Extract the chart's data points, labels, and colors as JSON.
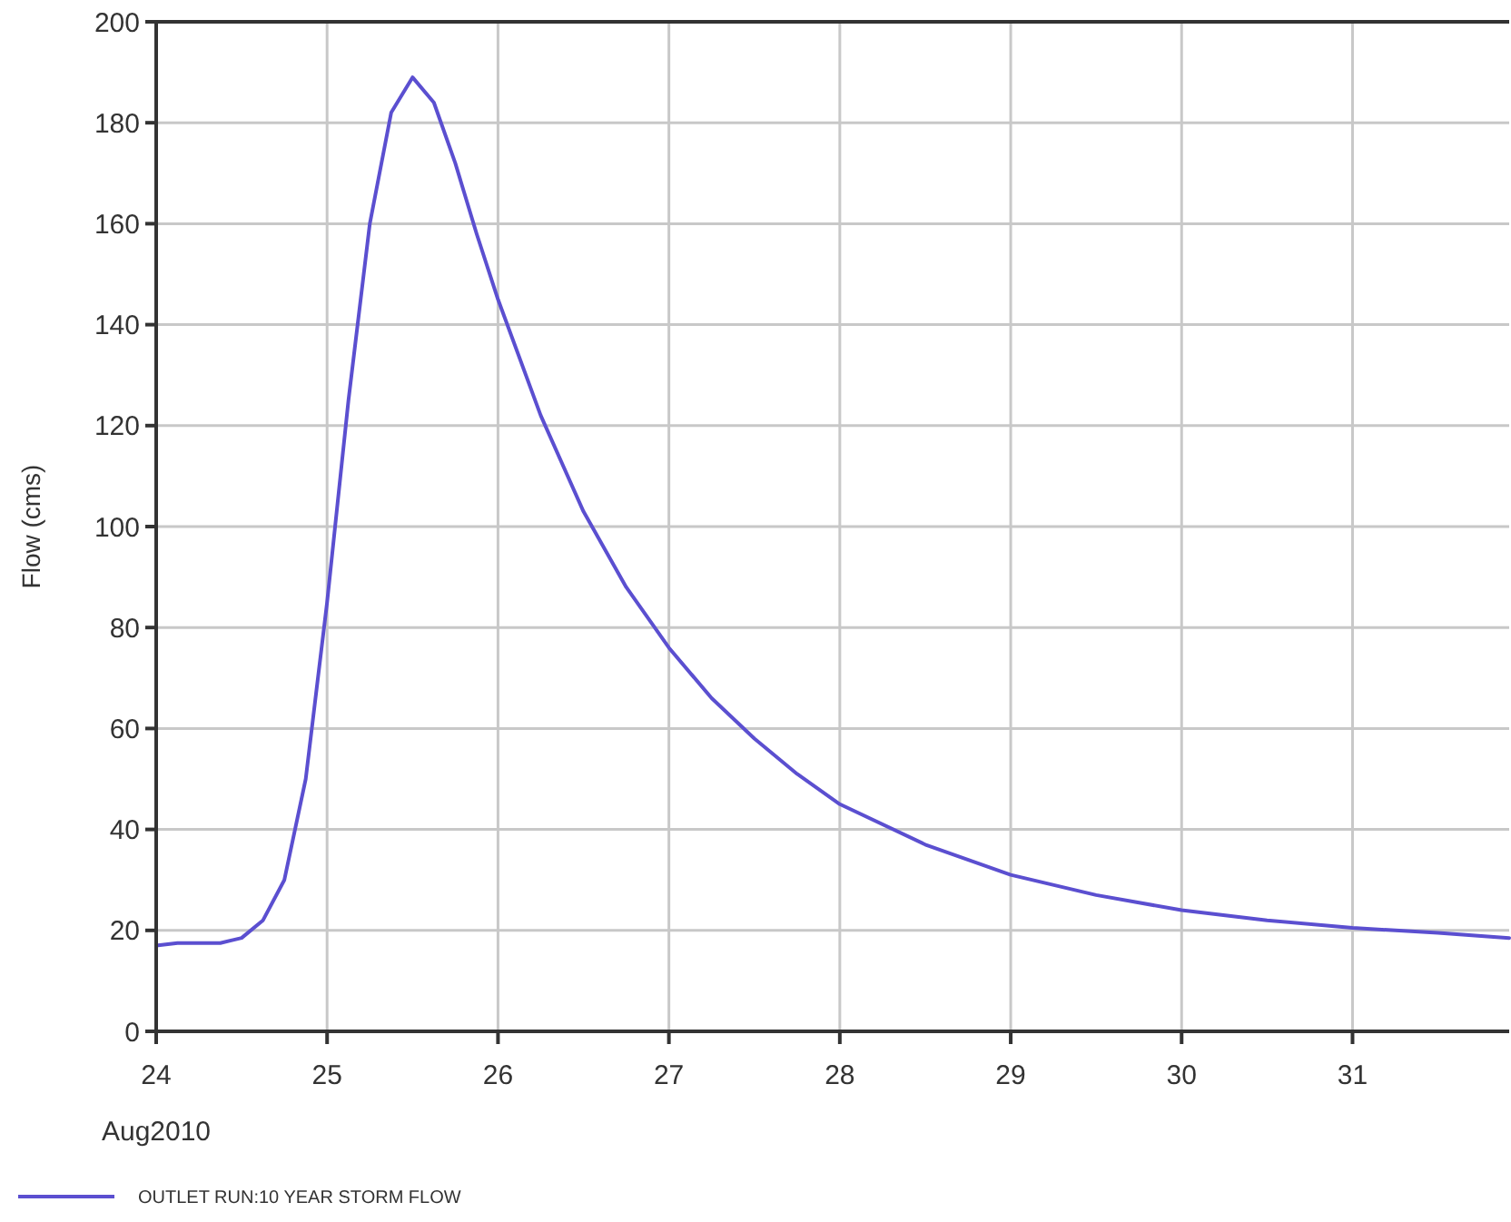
{
  "chart_data": {
    "type": "line",
    "ylabel": "Flow (cms)",
    "annotations": [
      "Aug2010"
    ],
    "x": [
      "2010-08-24T00:00",
      "2010-08-24T03:00",
      "2010-08-24T09:00",
      "2010-08-24T12:00",
      "2010-08-24T15:00",
      "2010-08-24T18:00",
      "2010-08-24T21:00",
      "2010-08-25T00:00",
      "2010-08-25T03:00",
      "2010-08-25T06:00",
      "2010-08-25T09:00",
      "2010-08-25T12:00",
      "2010-08-25T15:00",
      "2010-08-25T18:00",
      "2010-08-25T21:00",
      "2010-08-26T00:00",
      "2010-08-26T06:00",
      "2010-08-26T12:00",
      "2010-08-26T18:00",
      "2010-08-27T00:00",
      "2010-08-27T06:00",
      "2010-08-27T12:00",
      "2010-08-27T18:00",
      "2010-08-28T00:00",
      "2010-08-28T12:00",
      "2010-08-29T00:00",
      "2010-08-29T12:00",
      "2010-08-30T00:00",
      "2010-08-30T12:00",
      "2010-08-31T00:00",
      "2010-08-31T12:00",
      "2010-08-31T22:00"
    ],
    "series": [
      {
        "name": "OUTLET RUN:10 YEAR STORM FLOW",
        "color": "#5b4fd0",
        "values": [
          17,
          17.5,
          17.5,
          18.5,
          22,
          30,
          50,
          85,
          125,
          160,
          182,
          189,
          184,
          172,
          158,
          145,
          122,
          103,
          88,
          76,
          66,
          58,
          51,
          45,
          37,
          31,
          27,
          24,
          22,
          20.5,
          19.5,
          18.5
        ]
      }
    ],
    "xlim": [
      "2010-08-24T00:00",
      "2010-08-31T22:00"
    ],
    "xticks": [
      {
        "value": "2010-08-24T00:00",
        "label": "24"
      },
      {
        "value": "2010-08-25T00:00",
        "label": "25"
      },
      {
        "value": "2010-08-26T00:00",
        "label": "26"
      },
      {
        "value": "2010-08-27T00:00",
        "label": "27"
      },
      {
        "value": "2010-08-28T00:00",
        "label": "28"
      },
      {
        "value": "2010-08-29T00:00",
        "label": "29"
      },
      {
        "value": "2010-08-30T00:00",
        "label": "30"
      },
      {
        "value": "2010-08-31T00:00",
        "label": "31"
      }
    ],
    "ylim": [
      0,
      200
    ],
    "yticks": [
      0,
      20,
      40,
      60,
      80,
      100,
      120,
      140,
      160,
      180,
      200
    ],
    "grid": true,
    "legend": "bottom left",
    "marker": "none",
    "line_style": "solid"
  }
}
